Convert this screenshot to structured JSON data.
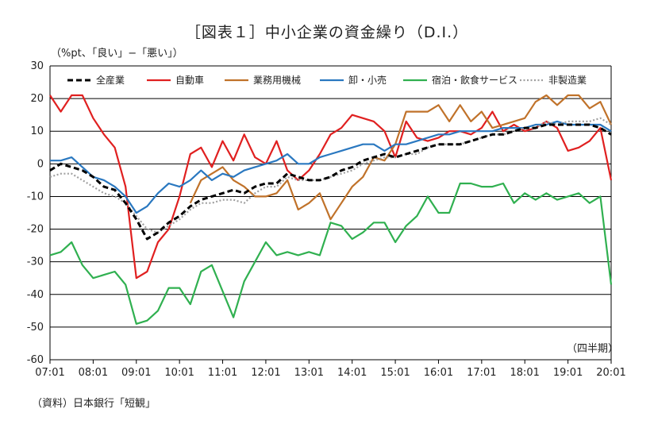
{
  "chart_data": {
    "type": "line",
    "title": "［図表１］中小企業の資金繰り（D.I.）",
    "ylabel": "（%pt、「良い」−「悪い」）",
    "xlabel": "",
    "period_label": "（四半期）",
    "source": "（資料）日本銀行「短観」",
    "ylim": [
      -60,
      30
    ],
    "yticks": [
      30,
      20,
      10,
      0,
      -10,
      -20,
      -30,
      -40,
      -50,
      -60
    ],
    "x_tick_labels": [
      "07:01",
      "08:01",
      "09:01",
      "10:01",
      "11:01",
      "12:01",
      "13:01",
      "14:01",
      "15:01",
      "16:01",
      "17:01",
      "18:01",
      "19:01",
      "20:01"
    ],
    "n_quarters": 53,
    "grid": true,
    "legend_position": "top-inside",
    "series": [
      {
        "name": "全産業",
        "color": "#000000",
        "style": "dash",
        "values": [
          -2,
          0,
          -1,
          -2,
          -4,
          -7,
          -8,
          -12,
          -17,
          -23,
          -21,
          -18,
          -16,
          -13,
          -11,
          -10,
          -9,
          -8,
          -9,
          -7,
          -6,
          -6,
          -3,
          -4,
          -5,
          -5,
          -4,
          -2,
          -1,
          1,
          2,
          3,
          2,
          3,
          4,
          5,
          6,
          6,
          6,
          7,
          8,
          9,
          9,
          10,
          11,
          11,
          12,
          12,
          12,
          12,
          12,
          11,
          9
        ]
      },
      {
        "name": "自動車",
        "color": "#e02020",
        "style": "solid",
        "values": [
          21,
          16,
          21,
          21,
          14,
          9,
          5,
          -7,
          -35,
          -33,
          -24,
          -20,
          -10,
          3,
          5,
          -1,
          7,
          1,
          9,
          2,
          0,
          7,
          -2,
          -5,
          -2,
          3,
          9,
          11,
          15,
          14,
          13,
          10,
          2,
          13,
          8,
          7,
          8,
          10,
          10,
          9,
          11,
          16,
          10,
          12,
          10,
          11,
          13,
          11,
          4,
          5,
          7,
          11,
          -5
        ]
      },
      {
        "name": "業務用機械",
        "color": "#c0722a",
        "style": "solid",
        "values": [
          null,
          null,
          null,
          null,
          null,
          null,
          null,
          null,
          null,
          null,
          null,
          null,
          null,
          -12,
          -5,
          -3,
          -1,
          -5,
          -7,
          -10,
          -10,
          -9,
          -5,
          -14,
          -12,
          -9,
          -17,
          -12,
          -7,
          -4,
          2,
          1,
          6,
          16,
          16,
          16,
          18,
          13,
          18,
          13,
          16,
          11,
          12,
          13,
          14,
          19,
          21,
          18,
          21,
          21,
          17,
          19,
          12
        ]
      },
      {
        "name": "卸・小売",
        "color": "#2a78c0",
        "style": "solid",
        "values": [
          1,
          1,
          2,
          -1,
          -4,
          -5,
          -7,
          -10,
          -15,
          -13,
          -9,
          -6,
          -7,
          -5,
          -2,
          -5,
          -3,
          -4,
          -2,
          -1,
          0,
          1,
          3,
          0,
          0,
          2,
          3,
          4,
          5,
          6,
          6,
          4,
          6,
          6,
          7,
          8,
          9,
          9,
          10,
          10,
          10,
          10,
          11,
          11,
          11,
          12,
          12,
          13,
          12,
          12,
          12,
          12,
          10
        ]
      },
      {
        "name": "宿泊・飲食サービス",
        "color": "#30b050",
        "style": "solid",
        "values": [
          -28,
          -27,
          -24,
          -31,
          -35,
          -34,
          -33,
          -37,
          -49,
          -48,
          -45,
          -38,
          -38,
          -43,
          -33,
          -31,
          -39,
          -47,
          -36,
          -30,
          -24,
          -28,
          -27,
          -28,
          -27,
          -28,
          -18,
          -19,
          -23,
          -21,
          -18,
          -18,
          -24,
          -19,
          -16,
          -10,
          -15,
          -15,
          -6,
          -6,
          -7,
          -7,
          -6,
          -12,
          -9,
          -11,
          -9,
          -11,
          -10,
          -9,
          -12,
          -10,
          -37
        ]
      },
      {
        "name": "非製造業",
        "color": "#a0a0a0",
        "style": "dot",
        "values": [
          -4,
          -3,
          -3,
          -5,
          -7,
          -9,
          -10,
          -12,
          -16,
          -20,
          -21,
          -19,
          -17,
          -14,
          -12,
          -12,
          -11,
          -11,
          -12,
          -9,
          -7,
          -7,
          -4,
          -5,
          -5,
          -5,
          -4,
          -3,
          -2,
          0,
          1,
          2,
          2,
          3,
          3,
          5,
          6,
          6,
          6,
          7,
          8,
          9,
          9,
          10,
          11,
          11,
          13,
          12,
          13,
          13,
          13,
          14,
          12
        ]
      }
    ]
  }
}
